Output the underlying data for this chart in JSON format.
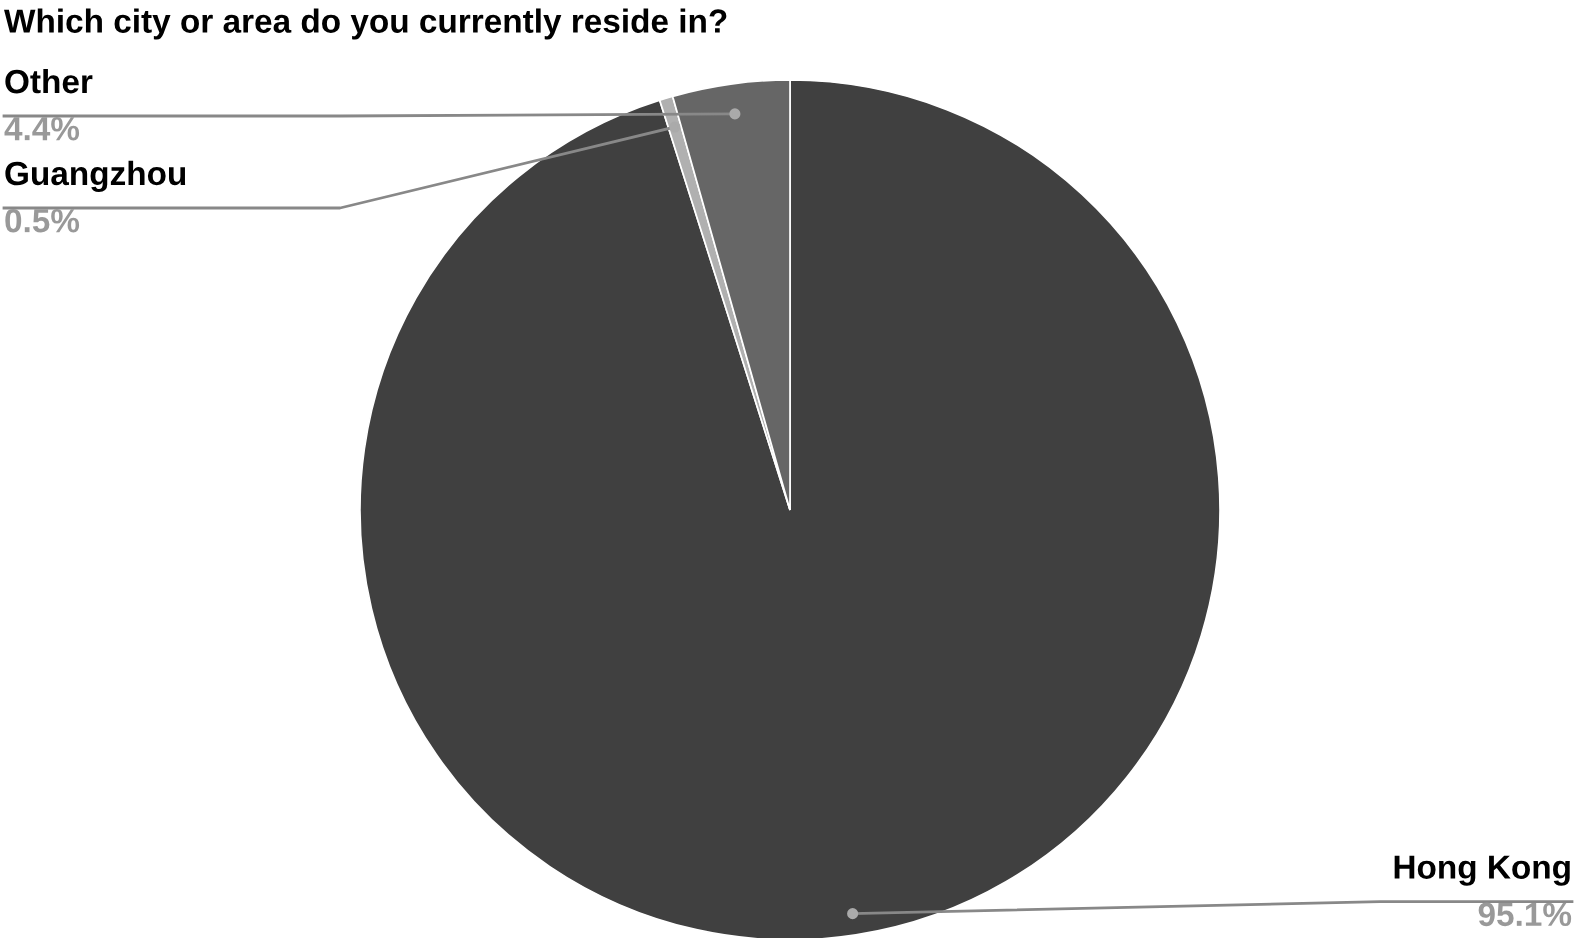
{
  "chart_data": {
    "type": "pie",
    "title": "Which city or area do you currently reside in?",
    "categories": [
      "Hong Kong",
      "Guangzhou",
      "Other"
    ],
    "values": [
      95.1,
      0.5,
      4.4
    ],
    "value_labels": [
      "95.1%",
      "0.5%",
      "4.4%"
    ],
    "colors": [
      "#404040",
      "#b0b0b0",
      "#666666"
    ]
  }
}
